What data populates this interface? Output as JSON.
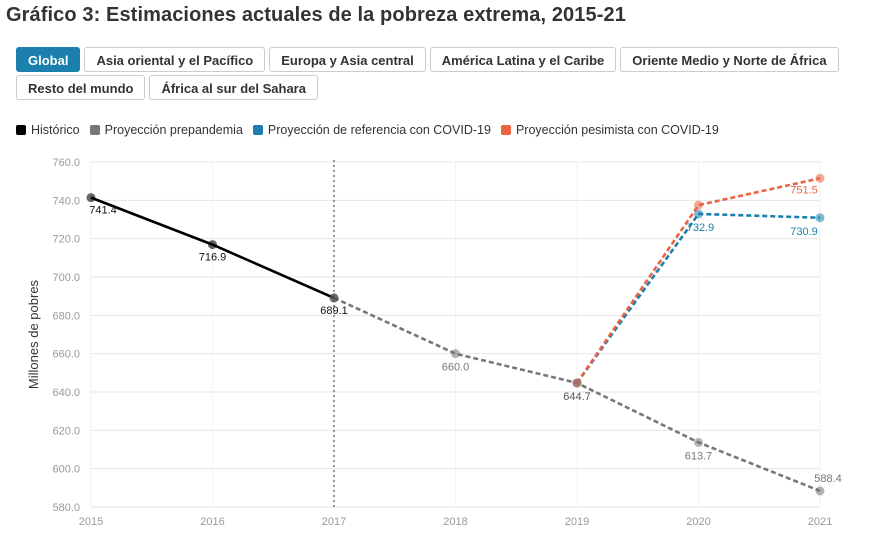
{
  "title": "Gráfico 3: Estimaciones actuales de la pobreza extrema, 2015-21",
  "tabs": [
    [
      "Global",
      "Asia oriental y el Pacífico",
      "Europa y Asia central",
      "América Latina y el Caribe",
      "Oriente Medio y Norte de África"
    ],
    [
      "Resto del mundo",
      "África al sur del Sahara"
    ]
  ],
  "active_tab": "Global",
  "colors": {
    "accent": "#1b80ad",
    "historico": "#000000",
    "prepandemia": "#777777",
    "referencia": "#1b80ad",
    "pesimista": "#eb6340"
  },
  "chart_data": {
    "type": "line",
    "title": "",
    "xlabel": "",
    "ylabel": "Millones de pobres",
    "x": [
      2015,
      2016,
      2017,
      2018,
      2019,
      2020,
      2021
    ],
    "ylim": [
      580,
      760
    ],
    "yticks": [
      "580.0",
      "600.0",
      "620.0",
      "640.0",
      "660.0",
      "680.0",
      "700.0",
      "720.0",
      "740.0",
      "760.0"
    ],
    "xticks": [
      "2015",
      "2016",
      "2017",
      "2018",
      "2019",
      "2020",
      "2021"
    ],
    "grid": true,
    "legend_position": "top-left",
    "divider_x": 2017,
    "series": [
      {
        "name": "Histórico",
        "color_key": "historico",
        "dashed": false,
        "x": [
          2015,
          2016,
          2017
        ],
        "y": [
          741.4,
          716.9,
          689.1
        ],
        "labels": [
          "741.4",
          "716.9",
          "689.1"
        ]
      },
      {
        "name": "Proyección prepandemia",
        "color_key": "prepandemia",
        "dashed": true,
        "x": [
          2017,
          2018,
          2019,
          2020,
          2021
        ],
        "y": [
          689.1,
          660.0,
          644.7,
          613.7,
          588.4
        ],
        "labels": [
          "",
          "660.0",
          "",
          "613.7",
          "588.4"
        ]
      },
      {
        "name": "Proyección de referencia con COVID-19",
        "color_key": "referencia",
        "dashed": true,
        "x": [
          2019,
          2020,
          2021
        ],
        "y": [
          644.7,
          732.9,
          730.9
        ],
        "labels": [
          "",
          "732.9",
          "730.9"
        ]
      },
      {
        "name": "Proyección pesimista con COVID-19",
        "color_key": "pesimista",
        "dashed": true,
        "x": [
          2019,
          2020,
          2021
        ],
        "y": [
          644.7,
          737.5,
          751.5
        ],
        "labels": [
          "644.7",
          "",
          "751.5"
        ]
      }
    ]
  }
}
